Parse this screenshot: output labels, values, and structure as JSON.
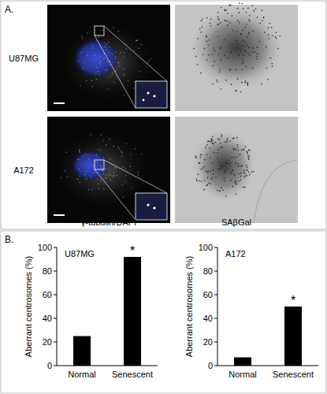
{
  "figure": {
    "panel_a": {
      "label": "A.",
      "rows": [
        "U87MG",
        "A172"
      ],
      "captions": [
        "γ-tubulin/DAPI",
        "SAβGal"
      ]
    },
    "panel_b": {
      "label": "B."
    }
  },
  "chart_data": [
    {
      "type": "bar",
      "title": "U87MG",
      "y_label": "Aberrant centrosomes (%)",
      "categories": [
        "Normal",
        "Senescent"
      ],
      "values": [
        25,
        92
      ],
      "color": "#000000",
      "ylim": [
        0,
        100
      ],
      "yticks": [
        0,
        20,
        40,
        60,
        80,
        100
      ],
      "grid": false,
      "annotations": [
        {
          "text": "*",
          "category": "Senescent"
        }
      ]
    },
    {
      "type": "bar",
      "title": "A172",
      "y_label": "Aberrant centrosomes (%)",
      "categories": [
        "Normal",
        "Senescent"
      ],
      "values": [
        7,
        50
      ],
      "color": "#000000",
      "ylim": [
        0,
        100
      ],
      "yticks": [
        0,
        20,
        40,
        60,
        80,
        100
      ],
      "grid": false,
      "annotations": [
        {
          "text": "*",
          "category": "Senescent"
        }
      ]
    }
  ]
}
